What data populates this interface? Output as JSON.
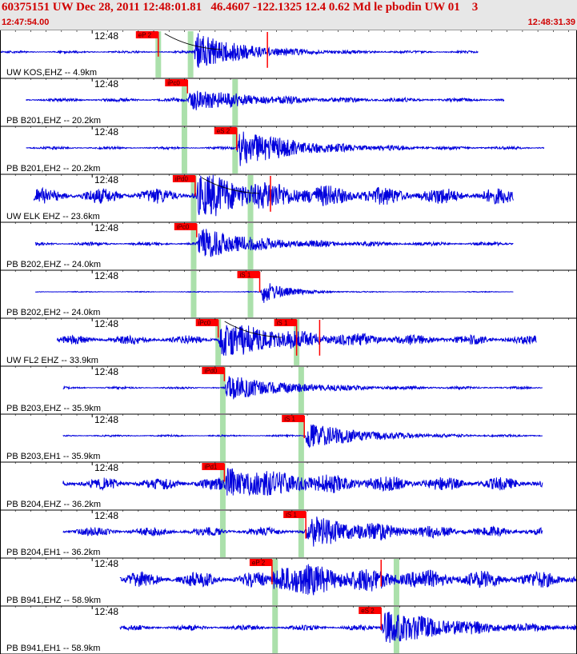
{
  "header": {
    "title": "60375151 UW Dec 28, 2011 12:48:01.81   46.4607 -122.1325 12.4 0.62 Md le pbodin UW 01    3",
    "start_time": "12:47:54.00",
    "end_time": "12:48:31.39"
  },
  "colors": {
    "trace": "#0000dd",
    "pick": "#ff0000",
    "window": "#8fd68f",
    "header_text": "#d00000",
    "grid": "#000000"
  },
  "chart_data": {
    "type": "seismogram",
    "x_range_seconds": [
      0,
      37.39
    ],
    "minute_tick_label": "12:48",
    "minute_tick_second": 6.0,
    "traces": [
      {
        "label": "UW KOS,EHZ -- 4.9km",
        "span": [
          0,
          31.1
        ],
        "noise": 0.05,
        "onset": 12.6,
        "peak": 0.9,
        "decay": 3.0,
        "picks": [
          {
            "label": "eP 2",
            "t": 10.3,
            "pf": 0.55
          },
          {
            "label": "",
            "t": 17.4,
            "pf": 0.8
          }
        ],
        "windows": [
          10.3,
          12.4
        ],
        "curve": true
      },
      {
        "label": "PB B201,EHZ -- 20.2km",
        "span": [
          1.7,
          32.8
        ],
        "noise": 0.08,
        "onset": 12.2,
        "peak": 0.5,
        "decay": 4.0,
        "picks": [
          {
            "label": "iPc0",
            "t": 12.2,
            "pf": 0.3
          }
        ],
        "windows": [
          12.0,
          15.3
        ]
      },
      {
        "label": "PB B201,EH2 -- 20.2km",
        "span": [
          1.7,
          35.4
        ],
        "noise": 0.06,
        "onset": 15.4,
        "peak": 0.9,
        "decay": 3.5,
        "picks": [
          {
            "label": "eS 2",
            "t": 15.4,
            "pf": 0.5
          }
        ],
        "windows": [
          12.0,
          15.3
        ]
      },
      {
        "label": "UW ELK EHZ -- 23.6km",
        "span": [
          2.2,
          33.4
        ],
        "noise": 0.35,
        "onset": 12.7,
        "peak": 0.75,
        "decay": 5.0,
        "picks": [
          {
            "label": "iPd0",
            "t": 12.7,
            "pf": 0.45
          },
          {
            "label": "",
            "t": 17.6,
            "pf": 0.8
          }
        ],
        "windows": [
          12.6,
          16.3
        ],
        "curve": true
      },
      {
        "label": "PB B202,EHZ -- 24.0km",
        "span": [
          2.3,
          33.4
        ],
        "noise": 0.08,
        "onset": 12.8,
        "peak": 0.7,
        "decay": 3.5,
        "picks": [
          {
            "label": "iPc0",
            "t": 12.8,
            "pf": 0.3
          }
        ],
        "windows": [
          12.6,
          16.3
        ]
      },
      {
        "label": "PB B202,EH2 -- 24.0km",
        "span": [
          2.3,
          33.4
        ],
        "noise": 0.02,
        "onset": 16.9,
        "peak": 0.6,
        "decay": 1.5,
        "picks": [
          {
            "label": "iS 1",
            "t": 16.9,
            "pf": 0.45
          }
        ],
        "windows": [
          12.6,
          16.3
        ]
      },
      {
        "label": "UW FL2 EHZ -- 33.9km",
        "span": [
          3.7,
          34.9
        ],
        "noise": 0.2,
        "onset": 14.2,
        "peak": 0.7,
        "decay": 4.5,
        "picks": [
          {
            "label": "iPc0",
            "t": 14.2,
            "pf": 0.4
          },
          {
            "label": "iS 1",
            "t": 19.3,
            "pf": 0.8
          },
          {
            "label": "",
            "t": 20.8,
            "pf": 0.8
          }
        ],
        "windows": [
          14.2,
          19.3
        ],
        "curve": true
      },
      {
        "label": "PB B203,EHZ -- 35.9km",
        "span": [
          4.1,
          35.3
        ],
        "noise": 0.05,
        "onset": 14.6,
        "peak": 0.55,
        "decay": 4.0,
        "picks": [
          {
            "label": "iPd0",
            "t": 14.6,
            "pf": 0.3
          }
        ],
        "windows": [
          14.5,
          19.6
        ]
      },
      {
        "label": "PB B203,EH1 -- 35.9km",
        "span": [
          4.1,
          35.3
        ],
        "noise": 0.04,
        "onset": 19.8,
        "peak": 0.6,
        "decay": 3.5,
        "picks": [
          {
            "label": "iS 1",
            "t": 19.8,
            "pf": 0.5
          }
        ],
        "windows": [
          14.5,
          19.6
        ]
      },
      {
        "label": "PB B204,EHZ -- 36.2km",
        "span": [
          4.1,
          35.3
        ],
        "noise": 0.28,
        "onset": 14.6,
        "peak": 0.6,
        "decay": 5.0,
        "picks": [
          {
            "label": "iPd1",
            "t": 14.6,
            "pf": 0.4
          }
        ],
        "windows": [
          14.5,
          19.6
        ]
      },
      {
        "label": "PB B204,EH1 -- 36.2km",
        "span": [
          4.1,
          35.3
        ],
        "noise": 0.2,
        "onset": 19.9,
        "peak": 0.6,
        "decay": 4.0,
        "picks": [
          {
            "label": "iS 1",
            "t": 19.9,
            "pf": 0.6
          }
        ],
        "windows": [
          14.5,
          19.6
        ]
      },
      {
        "label": "PB B941,EHZ -- 58.9km",
        "span": [
          7.8,
          38.0
        ],
        "noise": 0.35,
        "onset": 17.7,
        "peak": 0.55,
        "decay": 6.0,
        "picks": [
          {
            "label": "eP 2",
            "t": 17.7,
            "pf": 0.55
          },
          {
            "label": "",
            "t": 24.8,
            "pf": 0.6
          }
        ],
        "windows": [
          17.9,
          25.8
        ]
      },
      {
        "label": "PB B941,EH1 -- 58.9km",
        "span": [
          7.8,
          38.0
        ],
        "noise": 0.12,
        "onset": 24.8,
        "peak": 0.8,
        "decay": 4.0,
        "picks": [
          {
            "label": "eS 2",
            "t": 24.8,
            "pf": 0.5
          }
        ],
        "windows": [
          17.9,
          25.8
        ]
      }
    ]
  }
}
